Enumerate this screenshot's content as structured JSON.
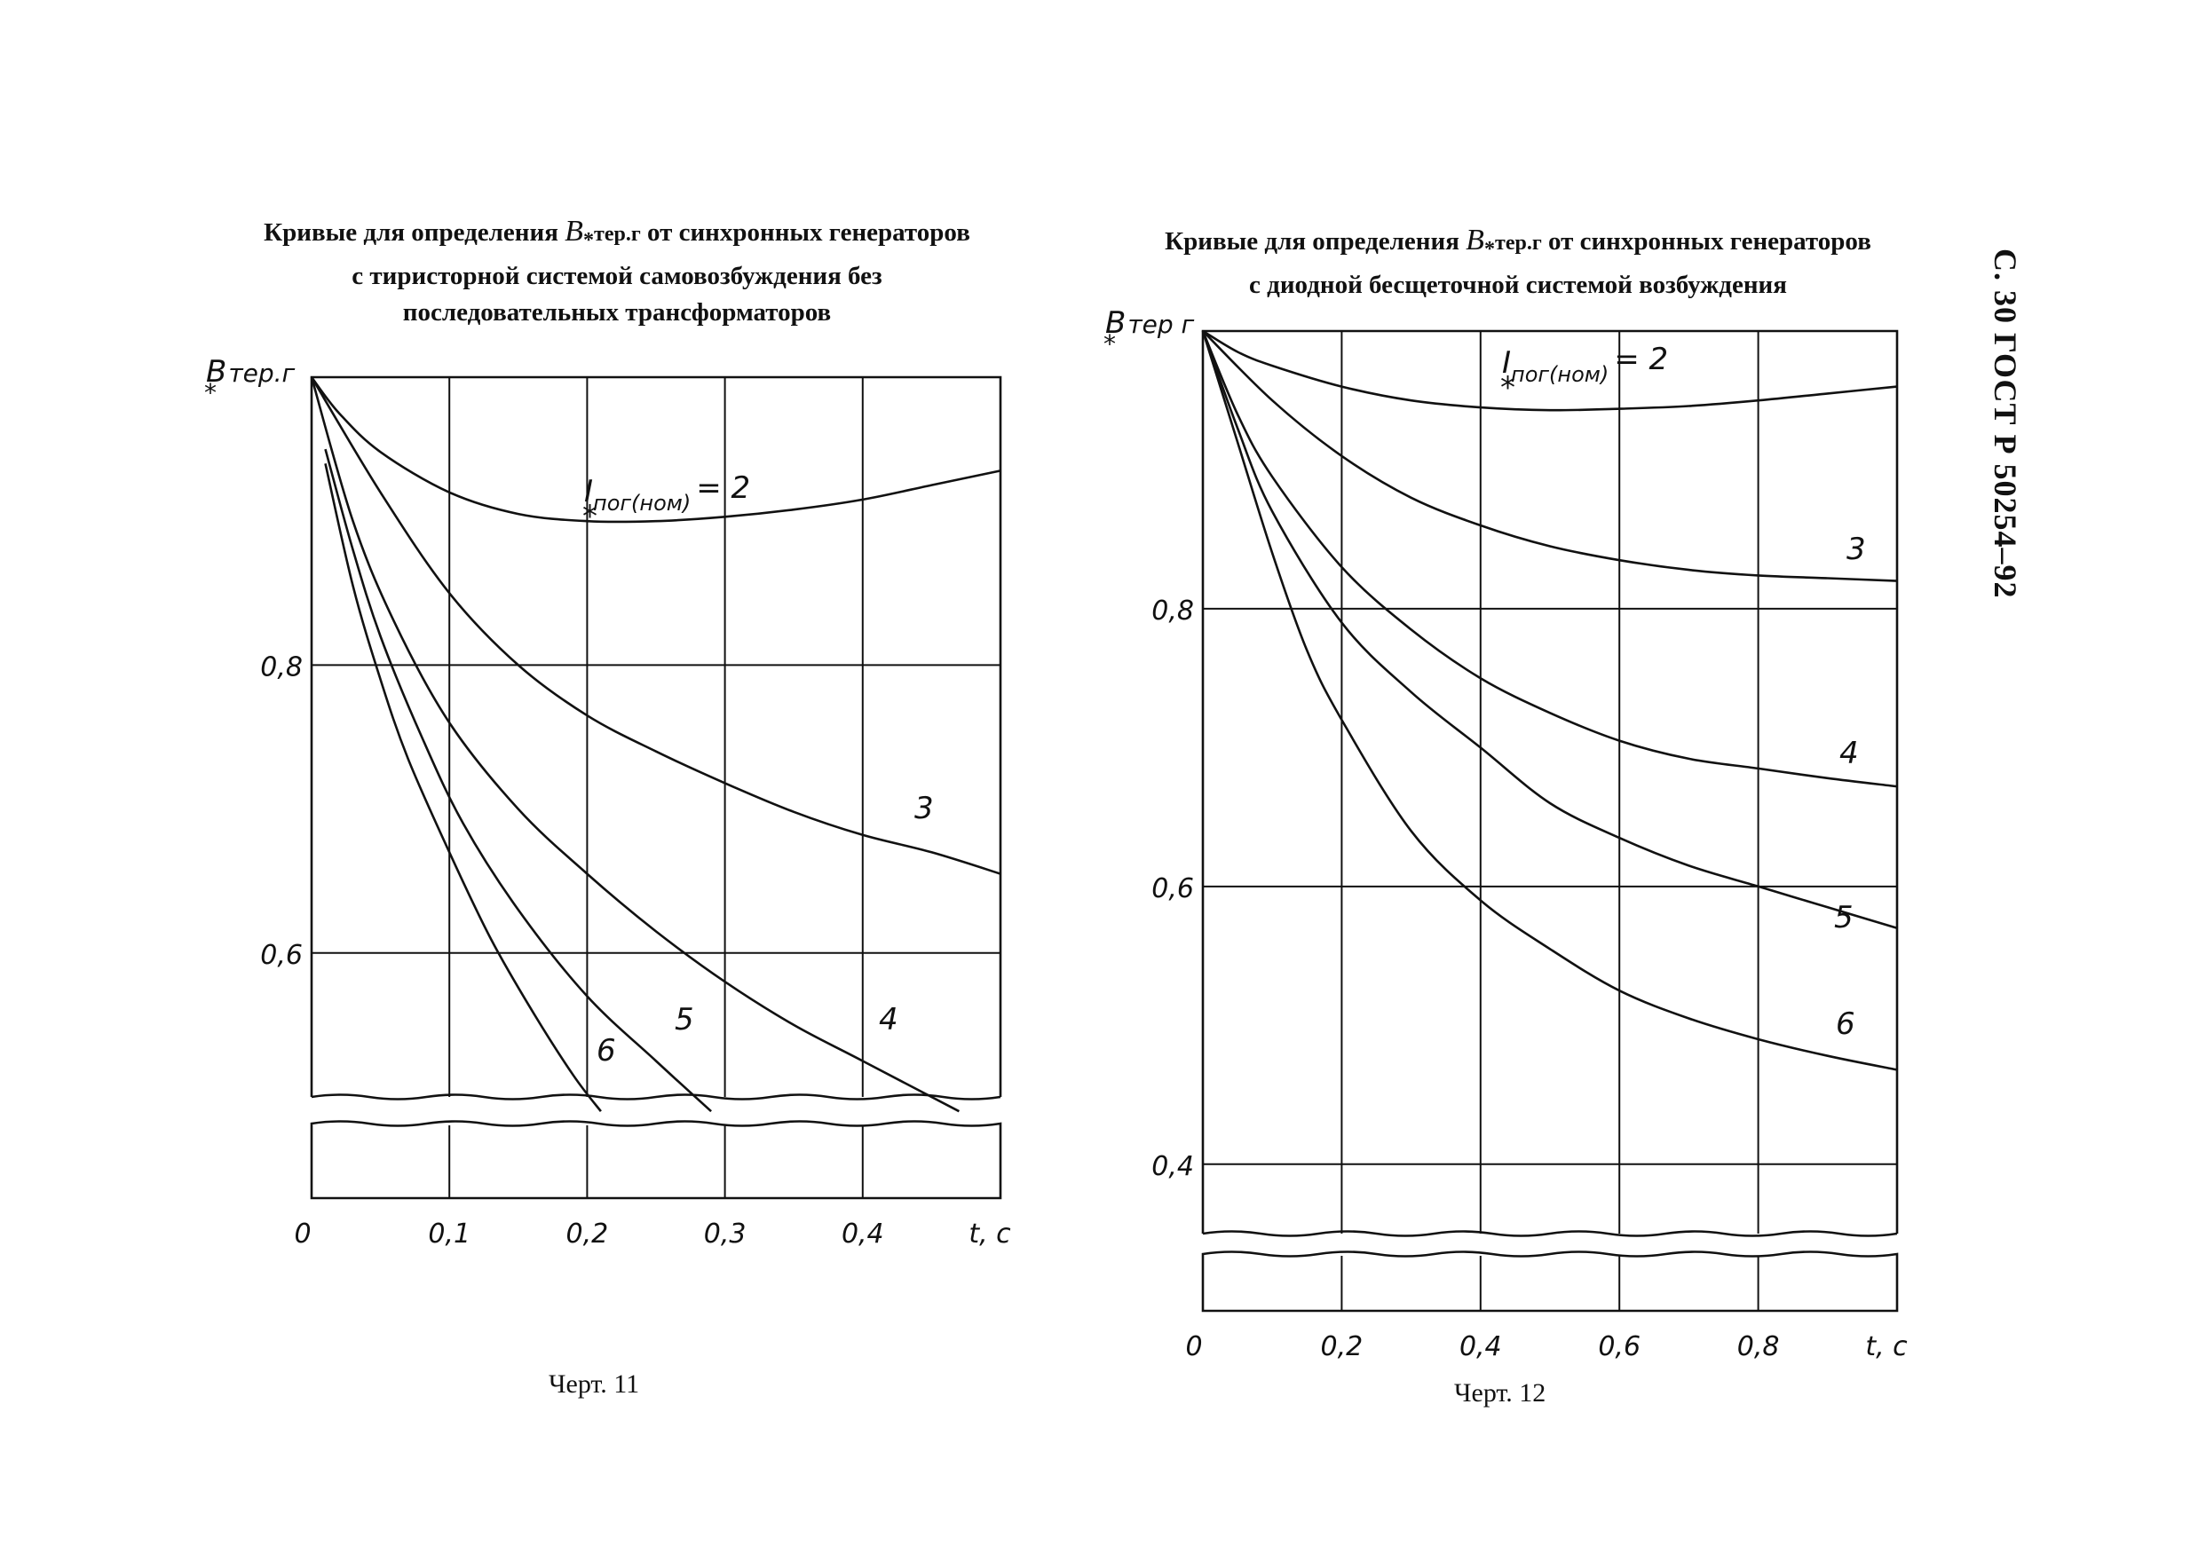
{
  "sidebar_text": "С. 30 ГОСТ Р 50254–92",
  "chart_data": [
    {
      "type": "line",
      "title": {
        "before": "Кривые для определения ",
        "symbol": "B",
        "star": "*",
        "subscript": "тер.г",
        "after": " от синхронных генераторов",
        "line2": "с тиристорной системой самовозбуждения без",
        "line3": "последовательных трансформаторов"
      },
      "caption": "Черт. 11",
      "ylabel": {
        "symbol": "B",
        "star": "*",
        "sub": "тер.г"
      },
      "xlabel": "t, c",
      "xlim": [
        0,
        0.5
      ],
      "ylim": [
        0.5,
        1.0
      ],
      "x_ticks": [
        "0",
        "0,1",
        "0,2",
        "0,3",
        "0,4"
      ],
      "y_ticks": [
        {
          "value": 0.8,
          "label": "0,8"
        },
        {
          "value": 0.6,
          "label": "0,6"
        }
      ],
      "grid": true,
      "series_label_prefix": {
        "symbol": "I",
        "star": "*",
        "sub": "пог(ном)",
        "eq": "= 2"
      },
      "series": [
        {
          "name": "2",
          "x": [
            0,
            0.02,
            0.05,
            0.1,
            0.15,
            0.2,
            0.25,
            0.3,
            0.35,
            0.4,
            0.45,
            0.5
          ],
          "y": [
            1.0,
            0.975,
            0.948,
            0.92,
            0.905,
            0.9,
            0.9,
            0.903,
            0.908,
            0.915,
            0.925,
            0.935
          ]
        },
        {
          "name": "3",
          "x": [
            0,
            0.05,
            0.1,
            0.15,
            0.2,
            0.25,
            0.3,
            0.35,
            0.4,
            0.45,
            0.5
          ],
          "y": [
            1.0,
            0.92,
            0.85,
            0.8,
            0.765,
            0.74,
            0.718,
            0.698,
            0.682,
            0.67,
            0.655
          ]
        },
        {
          "name": "4",
          "x": [
            0,
            0.03,
            0.06,
            0.1,
            0.15,
            0.2,
            0.25,
            0.3,
            0.35,
            0.4,
            0.47
          ],
          "y": [
            1.0,
            0.9,
            0.83,
            0.76,
            0.7,
            0.655,
            0.615,
            0.58,
            0.55,
            0.525,
            0.49
          ]
        },
        {
          "name": "5",
          "x": [
            0.01,
            0.03,
            0.05,
            0.08,
            0.11,
            0.15,
            0.2,
            0.25,
            0.29
          ],
          "y": [
            0.95,
            0.88,
            0.82,
            0.75,
            0.69,
            0.63,
            0.57,
            0.525,
            0.49
          ]
        },
        {
          "name": "6",
          "x": [
            0.01,
            0.03,
            0.05,
            0.07,
            0.1,
            0.13,
            0.16,
            0.19,
            0.21
          ],
          "y": [
            0.94,
            0.855,
            0.79,
            0.735,
            0.67,
            0.61,
            0.56,
            0.515,
            0.49
          ]
        }
      ]
    },
    {
      "type": "line",
      "title": {
        "before": "Кривые для определения ",
        "symbol": "B",
        "star": "*",
        "subscript": "тер.г",
        "after": " от синхронных генераторов",
        "line2": "с диодной бесщеточной системой возбуждения"
      },
      "caption": "Черт. 12",
      "ylabel": {
        "symbol": "B",
        "star": "*",
        "sub": "тер г"
      },
      "xlabel": "t, c",
      "xlim": [
        0,
        1.0
      ],
      "ylim": [
        0.35,
        1.0
      ],
      "x_ticks": [
        "0",
        "0,2",
        "0,4",
        "0,6",
        "0,8"
      ],
      "y_ticks": [
        {
          "value": 0.8,
          "label": "0,8"
        },
        {
          "value": 0.6,
          "label": "0,6"
        },
        {
          "value": 0.4,
          "label": "0,4"
        }
      ],
      "grid": true,
      "series_label_prefix": {
        "symbol": "I",
        "star": "*",
        "sub": "пог(ном)",
        "eq": "= 2"
      },
      "series": [
        {
          "name": "2",
          "x": [
            0,
            0.05,
            0.1,
            0.2,
            0.3,
            0.4,
            0.5,
            0.6,
            0.7,
            0.8,
            0.9,
            1.0
          ],
          "y": [
            1.0,
            0.985,
            0.975,
            0.96,
            0.95,
            0.945,
            0.943,
            0.944,
            0.946,
            0.95,
            0.955,
            0.96
          ]
        },
        {
          "name": "3",
          "x": [
            0,
            0.1,
            0.2,
            0.3,
            0.4,
            0.5,
            0.6,
            0.7,
            0.8,
            0.9,
            1.0
          ],
          "y": [
            1.0,
            0.95,
            0.91,
            0.88,
            0.86,
            0.845,
            0.835,
            0.828,
            0.824,
            0.822,
            0.82
          ]
        },
        {
          "name": "4",
          "x": [
            0,
            0.05,
            0.1,
            0.2,
            0.3,
            0.4,
            0.5,
            0.6,
            0.7,
            0.8,
            0.9,
            1.0
          ],
          "y": [
            1.0,
            0.94,
            0.895,
            0.83,
            0.785,
            0.75,
            0.725,
            0.705,
            0.692,
            0.685,
            0.678,
            0.672
          ]
        },
        {
          "name": "5",
          "x": [
            0,
            0.05,
            0.1,
            0.2,
            0.3,
            0.4,
            0.5,
            0.6,
            0.7,
            0.8,
            0.9,
            1.0
          ],
          "y": [
            1.0,
            0.93,
            0.87,
            0.79,
            0.74,
            0.7,
            0.66,
            0.635,
            0.615,
            0.6,
            0.585,
            0.57
          ]
        },
        {
          "name": "6",
          "x": [
            0,
            0.05,
            0.1,
            0.15,
            0.2,
            0.3,
            0.4,
            0.5,
            0.6,
            0.7,
            0.8,
            0.9,
            1.0
          ],
          "y": [
            1.0,
            0.92,
            0.84,
            0.77,
            0.72,
            0.64,
            0.59,
            0.555,
            0.525,
            0.505,
            0.49,
            0.478,
            0.468
          ]
        }
      ]
    }
  ]
}
